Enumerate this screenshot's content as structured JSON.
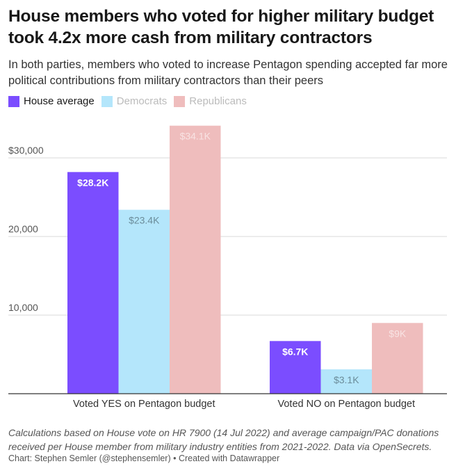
{
  "title": "House members who voted for higher military budget took 4.2x more cash from military contractors",
  "subtitle": "In both parties, members who voted to increase Pentagon spending accepted far more political contributions from military contractors than their peers",
  "notes": "Calculations based on House vote on HR 7900 (14 Jul 2022) and average campaign/PAC donations received per House member from military industry entities from 2021-2022. Data via OpenSecrets.",
  "byline": "Chart: Stephen Semler (@stephensemler) • Created with Datawrapper",
  "chart_data": {
    "type": "bar",
    "categories": [
      "Voted YES on Pentagon budget",
      "Voted NO on Pentagon budget"
    ],
    "series": [
      {
        "name": "House average",
        "color": "#7b4dff",
        "label_color": "#ffffff",
        "legend_text_color": "#181818",
        "values": [
          28200,
          6700
        ],
        "labels": [
          "$28.2K",
          "$6.7K"
        ]
      },
      {
        "name": "Democrats",
        "color": "#b4e6fb",
        "label_color": "#6b8c9a",
        "legend_text_color": "#bbbbbb",
        "values": [
          23400,
          3100
        ],
        "labels": [
          "$23.4K",
          "$3.1K"
        ]
      },
      {
        "name": "Republicans",
        "color": "#efbdbd",
        "label_color": "#f8e3e3",
        "legend_text_color": "#bbbbbb",
        "values": [
          34100,
          9000
        ],
        "labels": [
          "$34.1K",
          "$9K"
        ]
      }
    ],
    "yticks": [
      10000,
      20000,
      30000
    ],
    "ytick_labels": [
      "10,000",
      "20,000",
      "$30,000"
    ],
    "ylim": [
      0,
      35000
    ],
    "grid": true,
    "legend_position": "top-left"
  }
}
